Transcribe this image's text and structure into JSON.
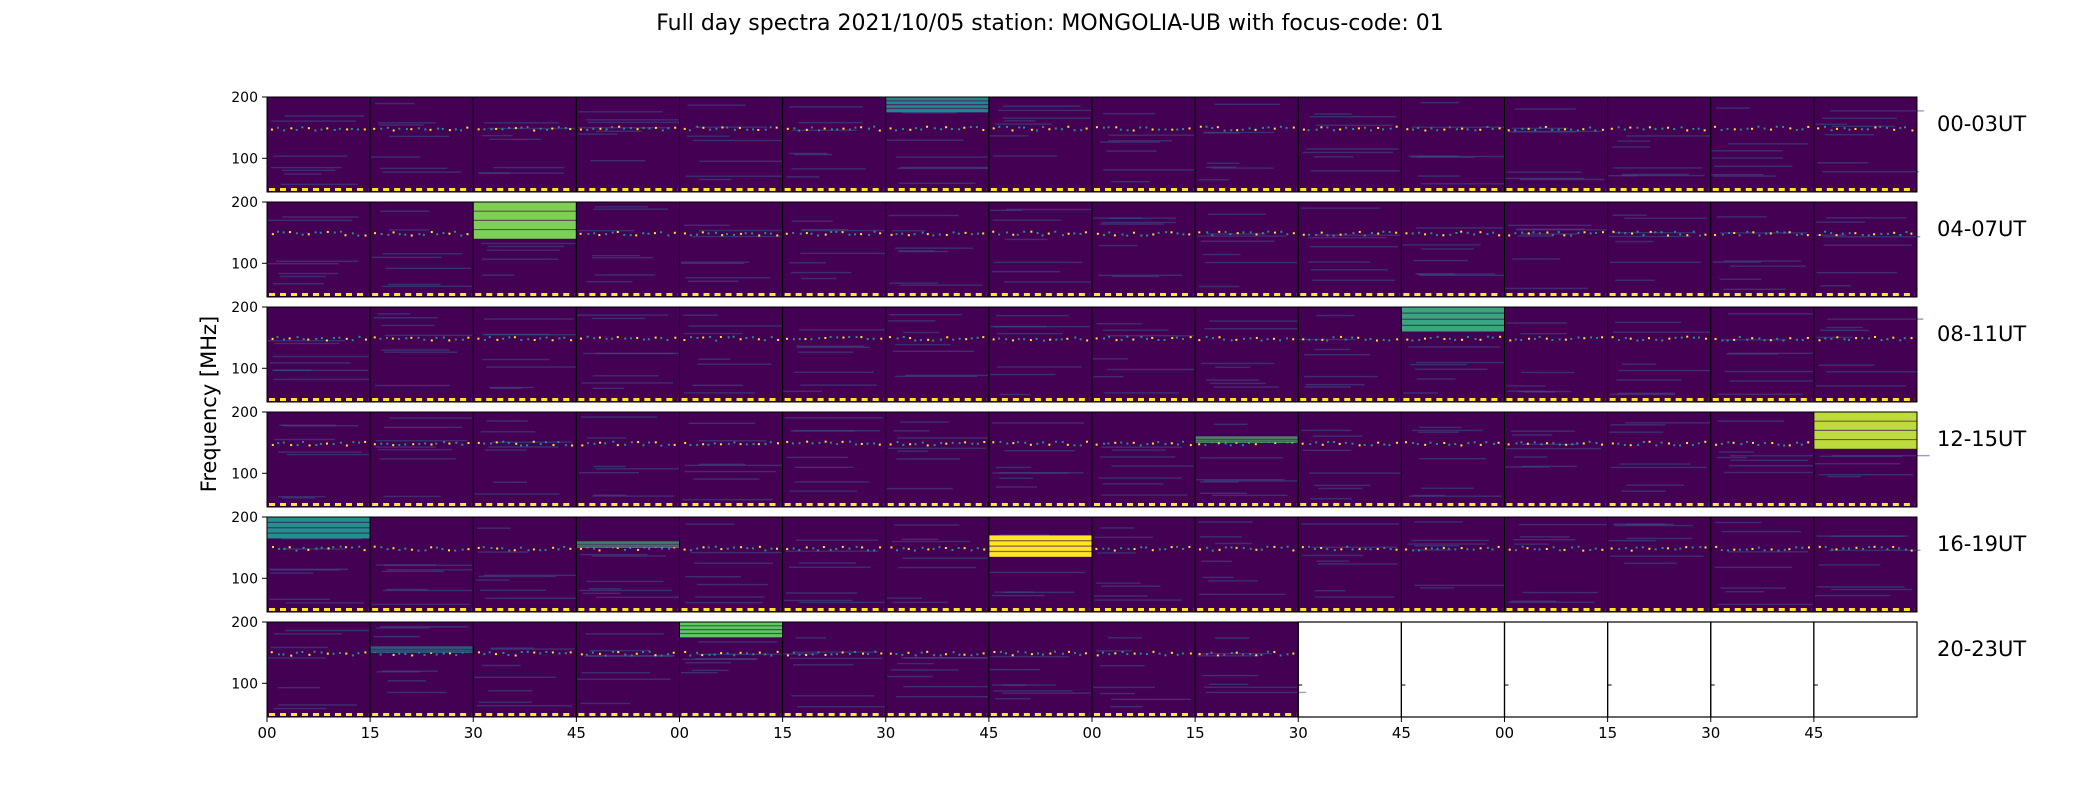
{
  "chart_data": {
    "type": "heatmap",
    "title": "Full day spectra 2021/10/05 station: MONGOLIA-UB with focus-code: 01",
    "xlabel": "",
    "ylabel": "Frequency [MHz]",
    "ylim": [
      45,
      200
    ],
    "y_ticks": [
      100,
      200
    ],
    "x_tick_labels": [
      "00",
      "15",
      "30",
      "45",
      "00",
      "15",
      "30",
      "45",
      "00",
      "15",
      "30",
      "45",
      "00",
      "15",
      "30",
      "45"
    ],
    "panels_per_row": 16,
    "minutes_per_panel": 15,
    "available_panels": 90,
    "colormap": [
      "#440154",
      "#3b528b",
      "#21918c",
      "#5ec962",
      "#fde725"
    ],
    "rows": [
      {
        "label": "00-03UT",
        "bright": [
          {
            "panel": 6,
            "fmin": 175,
            "fmax": 200,
            "level": 0.45
          }
        ]
      },
      {
        "label": "04-07UT",
        "bright": [
          {
            "panel": 2,
            "fmin": 140,
            "fmax": 200,
            "level": 0.8
          }
        ]
      },
      {
        "label": "08-11UT",
        "bright": [
          {
            "panel": 11,
            "fmin": 160,
            "fmax": 200,
            "level": 0.6
          }
        ]
      },
      {
        "label": "12-15UT",
        "bright": [
          {
            "panel": 9,
            "fmin": 150,
            "fmax": 160,
            "level": 0.7
          },
          {
            "panel": 15,
            "fmin": 140,
            "fmax": 200,
            "level": 0.9
          }
        ]
      },
      {
        "label": "16-19UT",
        "bright": [
          {
            "panel": 0,
            "fmin": 165,
            "fmax": 200,
            "level": 0.5
          },
          {
            "panel": 3,
            "fmin": 150,
            "fmax": 160,
            "level": 0.65
          },
          {
            "panel": 7,
            "fmin": 135,
            "fmax": 170,
            "level": 1.0
          }
        ]
      },
      {
        "label": "20-23UT",
        "bright": [
          {
            "panel": 4,
            "fmin": 175,
            "fmax": 200,
            "level": 0.75
          },
          {
            "panel": 1,
            "fmin": 150,
            "fmax": 160,
            "level": 0.45
          }
        ]
      }
    ]
  }
}
